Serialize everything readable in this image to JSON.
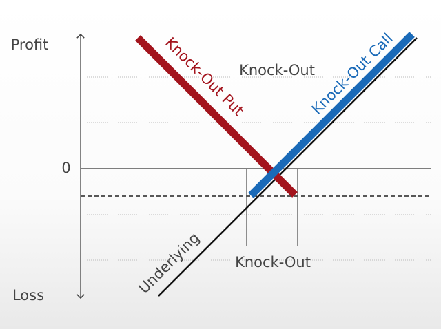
{
  "axis": {
    "top_label": "Profit",
    "bottom_label": "Loss",
    "zero_label": "0"
  },
  "annotations": {
    "upper": "Knock-Out",
    "lower": "Knock-Out"
  },
  "lines": [
    {
      "label": "Knock-Out Put"
    },
    {
      "label": "Knock-Out Call"
    },
    {
      "label": "Underlying"
    }
  ]
}
